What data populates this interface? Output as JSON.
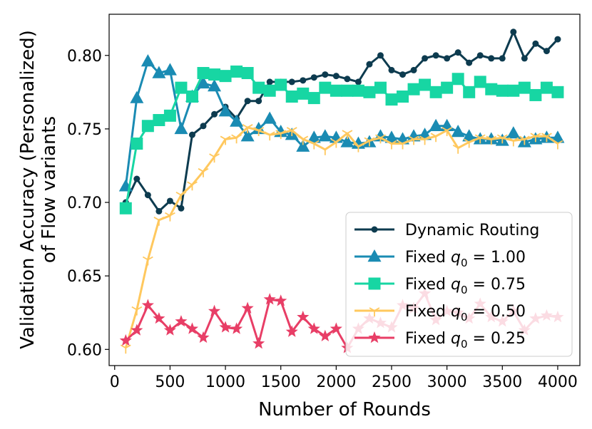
{
  "chart_data": {
    "type": "line",
    "xlabel": "Number of Rounds",
    "ylabel_lines": [
      "Validation Accuracy (Personalized)",
      "of Flow variants"
    ],
    "xlim": [
      -50,
      4200
    ],
    "ylim": [
      0.589,
      0.828
    ],
    "xticks": [
      0,
      500,
      1000,
      1500,
      2000,
      2500,
      3000,
      3500,
      4000
    ],
    "xtick_labels": [
      "0",
      "500",
      "1000",
      "1500",
      "2000",
      "2500",
      "3000",
      "3500",
      "4000"
    ],
    "yticks": [
      0.6,
      0.65,
      0.7,
      0.75,
      0.8
    ],
    "ytick_labels": [
      "0.60",
      "0.65",
      "0.70",
      "0.75",
      "0.80"
    ],
    "legend_position": "lower-right",
    "x": [
      100,
      200,
      300,
      400,
      500,
      600,
      700,
      800,
      900,
      1000,
      1100,
      1200,
      1300,
      1400,
      1500,
      1600,
      1700,
      1800,
      1900,
      2000,
      2100,
      2200,
      2300,
      2400,
      2500,
      2600,
      2700,
      2800,
      2900,
      3000,
      3100,
      3200,
      3300,
      3400,
      3500,
      3600,
      3700,
      3800,
      3900,
      4000
    ],
    "series": [
      {
        "name": "Dynamic Routing",
        "legend_prefix": "Dynamic Routing",
        "legend_sub": "",
        "legend_suffix": "",
        "color": "#0d3b4f",
        "marker": "circle",
        "values": [
          0.7,
          0.716,
          0.705,
          0.694,
          0.701,
          0.696,
          0.746,
          0.752,
          0.76,
          0.765,
          0.757,
          0.769,
          0.769,
          0.782,
          0.782,
          0.782,
          0.783,
          0.785,
          0.787,
          0.786,
          0.784,
          0.782,
          0.794,
          0.8,
          0.79,
          0.787,
          0.79,
          0.798,
          0.8,
          0.798,
          0.802,
          0.795,
          0.8,
          0.798,
          0.798,
          0.816,
          0.798,
          0.808,
          0.803,
          0.811
        ]
      },
      {
        "name": "Fixed q0 = 1.00",
        "legend_prefix": "Fixed ",
        "legend_sub": "0",
        "legend_suffix": " = 1.00",
        "color": "#1a8bb3",
        "marker": "triangle",
        "values": [
          0.711,
          0.771,
          0.796,
          0.788,
          0.79,
          0.75,
          0.772,
          0.781,
          0.779,
          0.762,
          0.755,
          0.745,
          0.75,
          0.757,
          0.748,
          0.746,
          0.738,
          0.744,
          0.745,
          0.744,
          0.741,
          0.74,
          0.741,
          0.745,
          0.744,
          0.743,
          0.745,
          0.746,
          0.752,
          0.752,
          0.748,
          0.745,
          0.743,
          0.743,
          0.742,
          0.747,
          0.741,
          0.743,
          0.744,
          0.744
        ]
      },
      {
        "name": "Fixed q0 = 0.75",
        "legend_prefix": "Fixed ",
        "legend_sub": "0",
        "legend_suffix": " = 0.75",
        "color": "#17d6a3",
        "marker": "square",
        "values": [
          0.696,
          0.74,
          0.752,
          0.756,
          0.759,
          0.778,
          0.772,
          0.788,
          0.787,
          0.786,
          0.789,
          0.788,
          0.778,
          0.776,
          0.78,
          0.772,
          0.774,
          0.771,
          0.778,
          0.776,
          0.776,
          0.776,
          0.775,
          0.778,
          0.77,
          0.772,
          0.777,
          0.78,
          0.775,
          0.778,
          0.784,
          0.775,
          0.782,
          0.777,
          0.776,
          0.776,
          0.778,
          0.773,
          0.778,
          0.775
        ]
      },
      {
        "name": "Fixed q0 = 0.50",
        "legend_prefix": "Fixed ",
        "legend_sub": "0",
        "legend_suffix": " = 0.50",
        "color": "#ffc85e",
        "marker": "tri",
        "values": [
          0.601,
          0.627,
          0.661,
          0.688,
          0.691,
          0.705,
          0.712,
          0.721,
          0.731,
          0.743,
          0.744,
          0.751,
          0.749,
          0.746,
          0.747,
          0.749,
          0.743,
          0.74,
          0.736,
          0.741,
          0.747,
          0.738,
          0.742,
          0.744,
          0.74,
          0.74,
          0.743,
          0.743,
          0.745,
          0.749,
          0.737,
          0.741,
          0.744,
          0.743,
          0.744,
          0.742,
          0.743,
          0.745,
          0.745,
          0.74
        ]
      },
      {
        "name": "Fixed q0 = 0.25",
        "legend_prefix": "Fixed ",
        "legend_sub": "0",
        "legend_suffix": " = 0.25",
        "color": "#e83e66",
        "marker": "star",
        "values": [
          0.606,
          0.613,
          0.63,
          0.621,
          0.613,
          0.619,
          0.614,
          0.608,
          0.626,
          0.615,
          0.614,
          0.628,
          0.604,
          0.634,
          0.633,
          0.612,
          0.622,
          0.614,
          0.609,
          0.614,
          0.601,
          0.614,
          0.621,
          0.618,
          0.615,
          0.63,
          0.628,
          0.638,
          0.62,
          0.626,
          0.625,
          0.621,
          0.631,
          0.622,
          0.619,
          0.626,
          0.613,
          0.621,
          0.623,
          0.622
        ]
      }
    ]
  }
}
